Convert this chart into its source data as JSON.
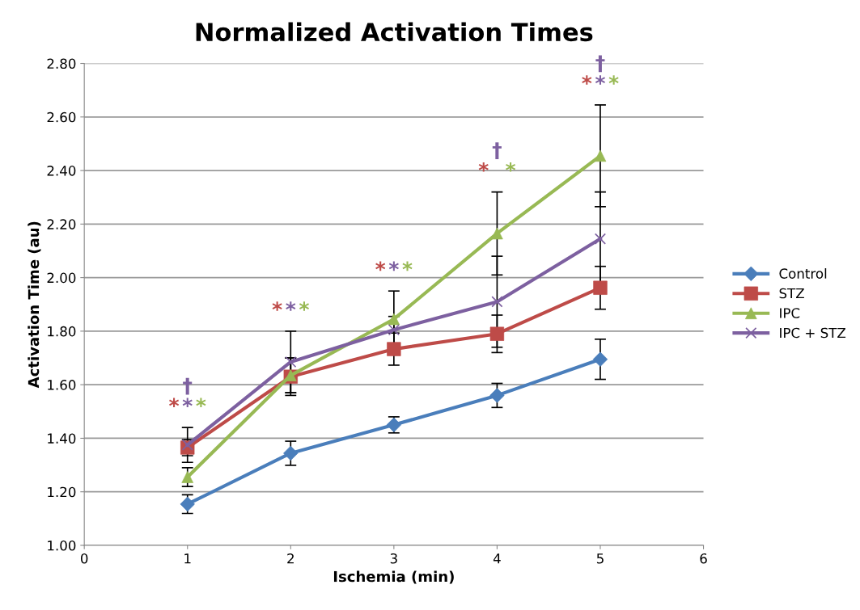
{
  "chart_data": {
    "type": "line",
    "title": "Normalized Activation Times",
    "xlabel": "Ischemia (min)",
    "ylabel": "Activation Time (au)",
    "x": [
      1,
      2,
      3,
      4,
      5
    ],
    "series": [
      {
        "name": "Control",
        "color": "#4a7ebb",
        "marker": "diamond",
        "values": [
          1.154,
          1.344,
          1.45,
          1.56,
          1.695
        ],
        "errors": [
          0.035,
          0.045,
          0.03,
          0.045,
          0.075
        ]
      },
      {
        "name": "STZ",
        "color": "#be4b48",
        "marker": "square",
        "values": [
          1.365,
          1.63,
          1.733,
          1.79,
          1.962
        ],
        "errors": [
          0.03,
          0.07,
          0.06,
          0.07,
          0.08
        ]
      },
      {
        "name": "IPC",
        "color": "#98b954",
        "marker": "triangle",
        "values": [
          1.255,
          1.635,
          1.845,
          2.165,
          2.455
        ],
        "errors": [
          0.035,
          0.065,
          0.105,
          0.155,
          0.19
        ]
      },
      {
        "name": "IPC + STZ",
        "color": "#7d60a0",
        "marker": "cross",
        "values": [
          1.375,
          1.685,
          1.805,
          1.91,
          2.145
        ],
        "errors": [
          0.065,
          0.115,
          0.05,
          0.17,
          0.175
        ]
      }
    ],
    "xlim": [
      0,
      6
    ],
    "xticks": [
      0,
      1,
      2,
      3,
      4,
      5,
      6
    ],
    "ylim": [
      1.0,
      2.8
    ],
    "yticks": [
      {
        "value": 1.0,
        "label": "1.00"
      },
      {
        "value": 1.2,
        "label": "1.20"
      },
      {
        "value": 1.4,
        "label": "1.40"
      },
      {
        "value": 1.6,
        "label": "1.60"
      },
      {
        "value": 1.8,
        "label": "1.80"
      },
      {
        "value": 2.0,
        "label": "2.00"
      },
      {
        "value": 2.2,
        "label": "2.20"
      },
      {
        "value": 2.4,
        "label": "2.40"
      },
      {
        "value": 2.6,
        "label": "2.60"
      },
      {
        "value": 2.8,
        "label": "2.80"
      }
    ],
    "grid": "y",
    "legend": "right",
    "annotations": [
      "* * *\n†",
      "* * *",
      "* * *",
      "*   *\n†",
      "* * *\n†"
    ]
  }
}
